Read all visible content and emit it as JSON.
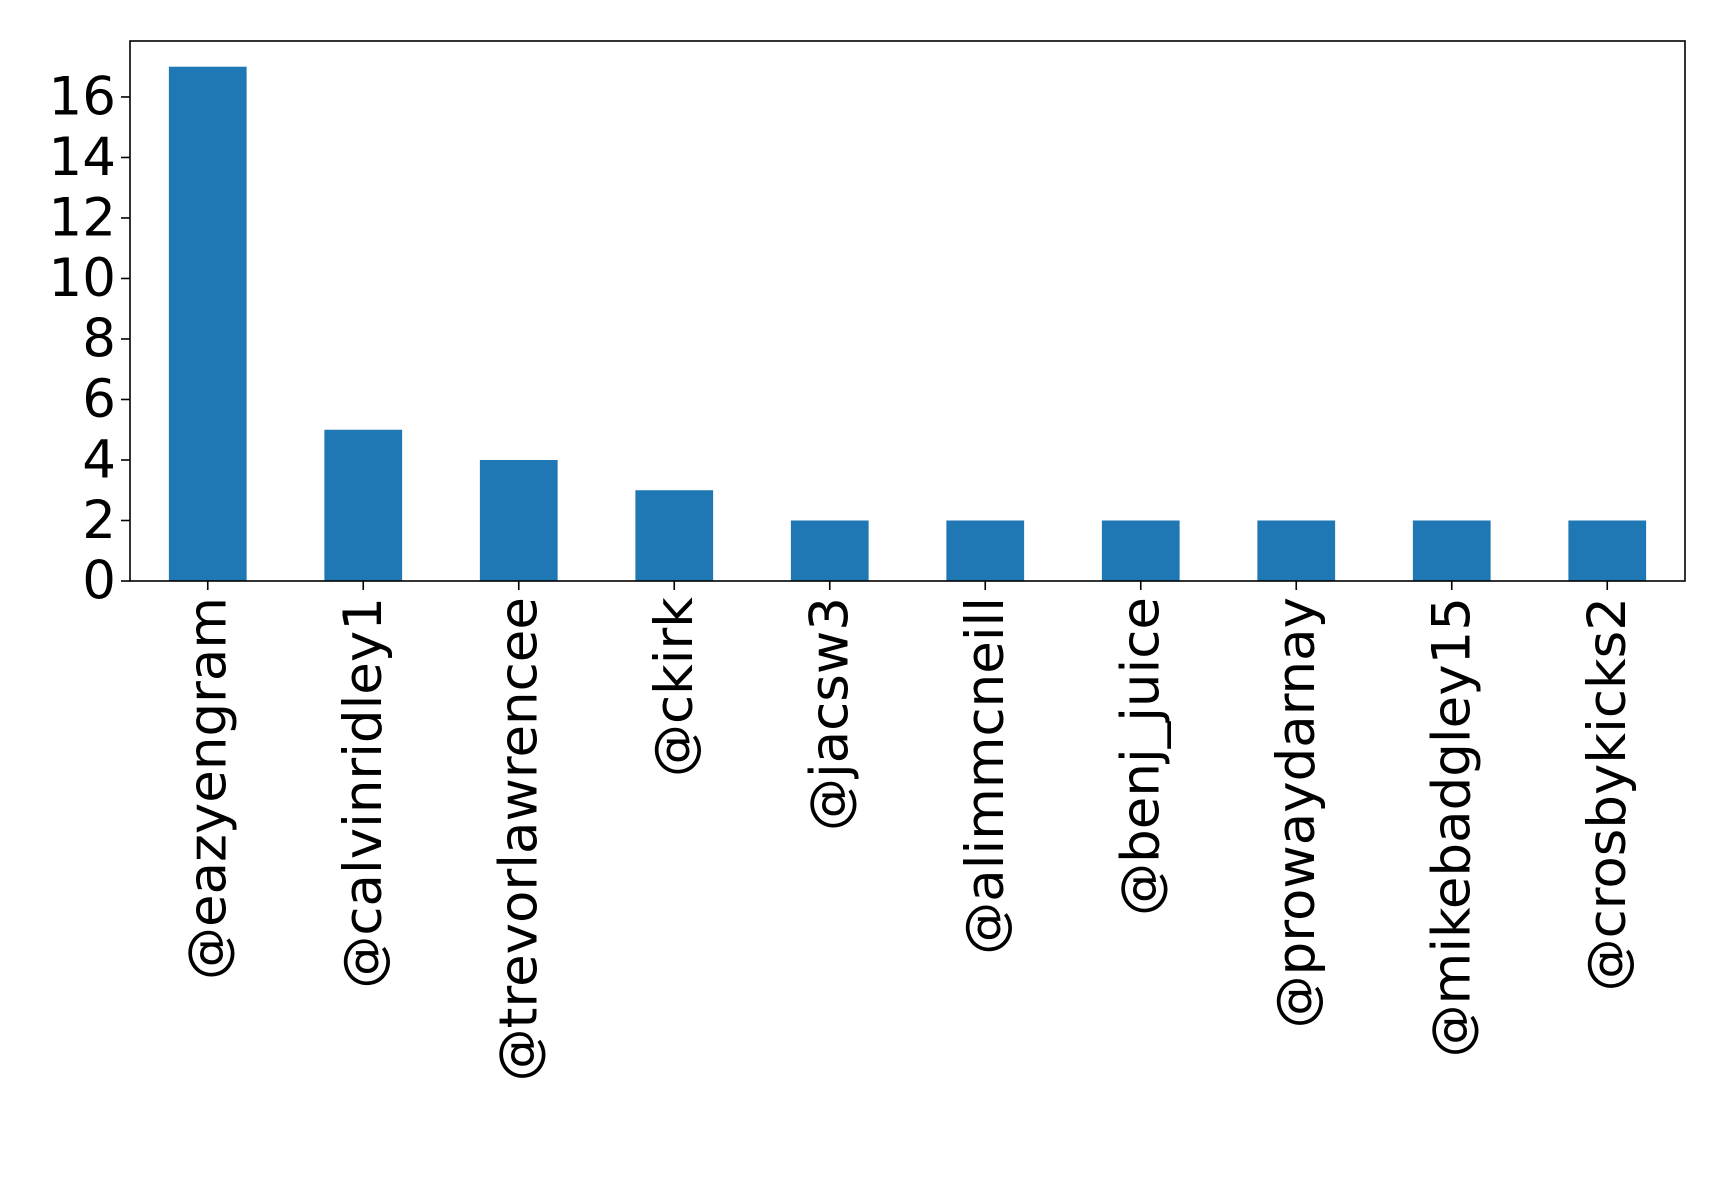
{
  "chart_data": {
    "type": "bar",
    "title": "",
    "xlabel": "",
    "ylabel": "",
    "categories": [
      "@eazyengram",
      "@calvinridley1",
      "@trevorlawrencee",
      "@ckirk",
      "@jacsw3",
      "@alimmcneill",
      "@benj_juice",
      "@prowaydarnay",
      "@mikebadgley15",
      "@crosbykicks2"
    ],
    "values": [
      17,
      5,
      4,
      3,
      2,
      2,
      2,
      2,
      2,
      2
    ],
    "ylim": [
      0,
      17.85
    ],
    "yticks": [
      0,
      2,
      4,
      6,
      8,
      10,
      12,
      14,
      16
    ],
    "grid": false,
    "legend": "none",
    "bar_color": "#1f77b4"
  }
}
